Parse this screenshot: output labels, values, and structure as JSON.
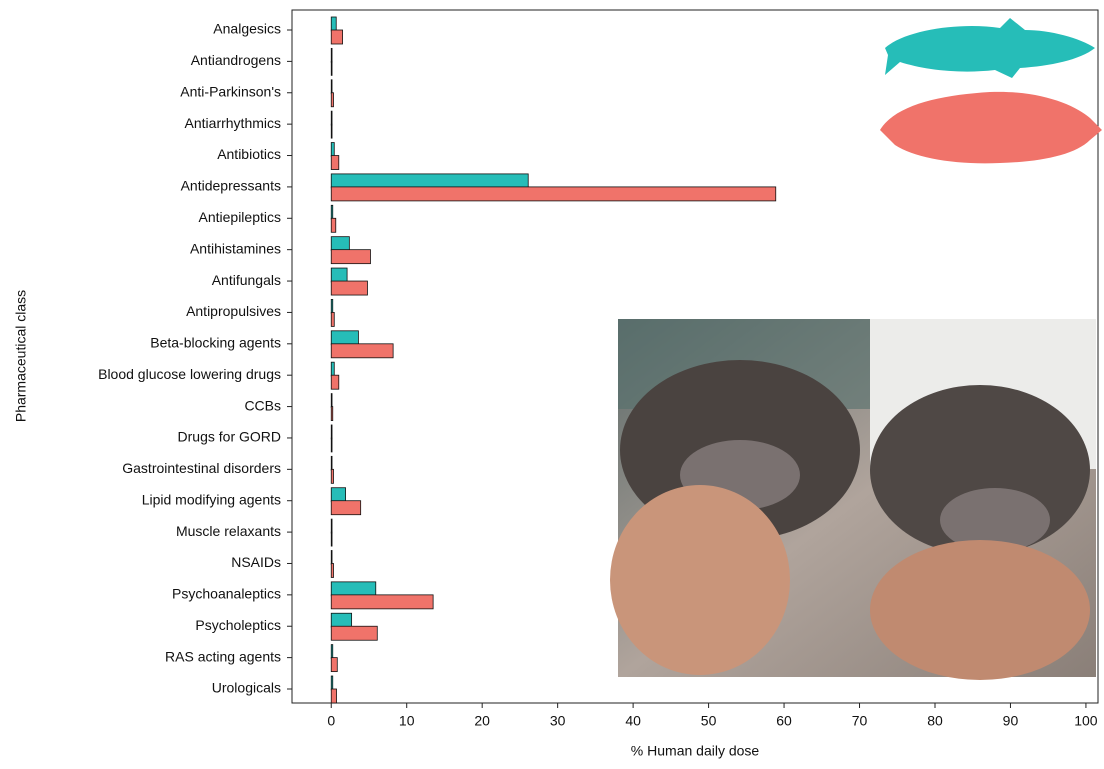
{
  "chart_data": {
    "type": "barh",
    "y_label": "Pharmaceutical class",
    "x_label": "% Human daily dose",
    "categories": [
      "Analgesics",
      "Antiandrogens",
      "Anti-Parkinson's",
      "Antiarrhythmics",
      "Antibiotics",
      "Antidepressants",
      "Antiepileptics",
      "Antihistamines",
      "Antifungals",
      "Antipropulsives",
      "Beta-blocking agents",
      "Blood glucose lowering drugs",
      "CCBs",
      "Drugs for GORD",
      "Gastrointestinal disorders",
      "Lipid modifying agents",
      "Muscle relaxants",
      "NSAIDs",
      "Psychoanaleptics",
      "Psycholeptics",
      "RAS acting agents",
      "Urologicals"
    ],
    "series": [
      {
        "color": "#26bdb8",
        "values": [
          0.66,
          0,
          0.1,
          0,
          0.4,
          26.1,
          0.2,
          2.4,
          2.1,
          0.2,
          3.6,
          0.4,
          0.1,
          0,
          0.1,
          1.9,
          0,
          0.1,
          5.9,
          2.7,
          0.2,
          0.2
        ]
      },
      {
        "color": "#f0736a",
        "values": [
          1.5,
          0.1,
          0.3,
          0.1,
          1.0,
          58.9,
          0.6,
          5.2,
          4.8,
          0.4,
          8.2,
          1.0,
          0.2,
          0.1,
          0.3,
          3.9,
          0.1,
          0.3,
          13.5,
          6.1,
          0.8,
          0.7
        ]
      }
    ],
    "xlim": [
      -5.2,
      101.6
    ],
    "xticks": [
      0,
      10,
      20,
      30,
      40,
      50,
      60,
      70,
      80,
      90,
      100
    ]
  }
}
